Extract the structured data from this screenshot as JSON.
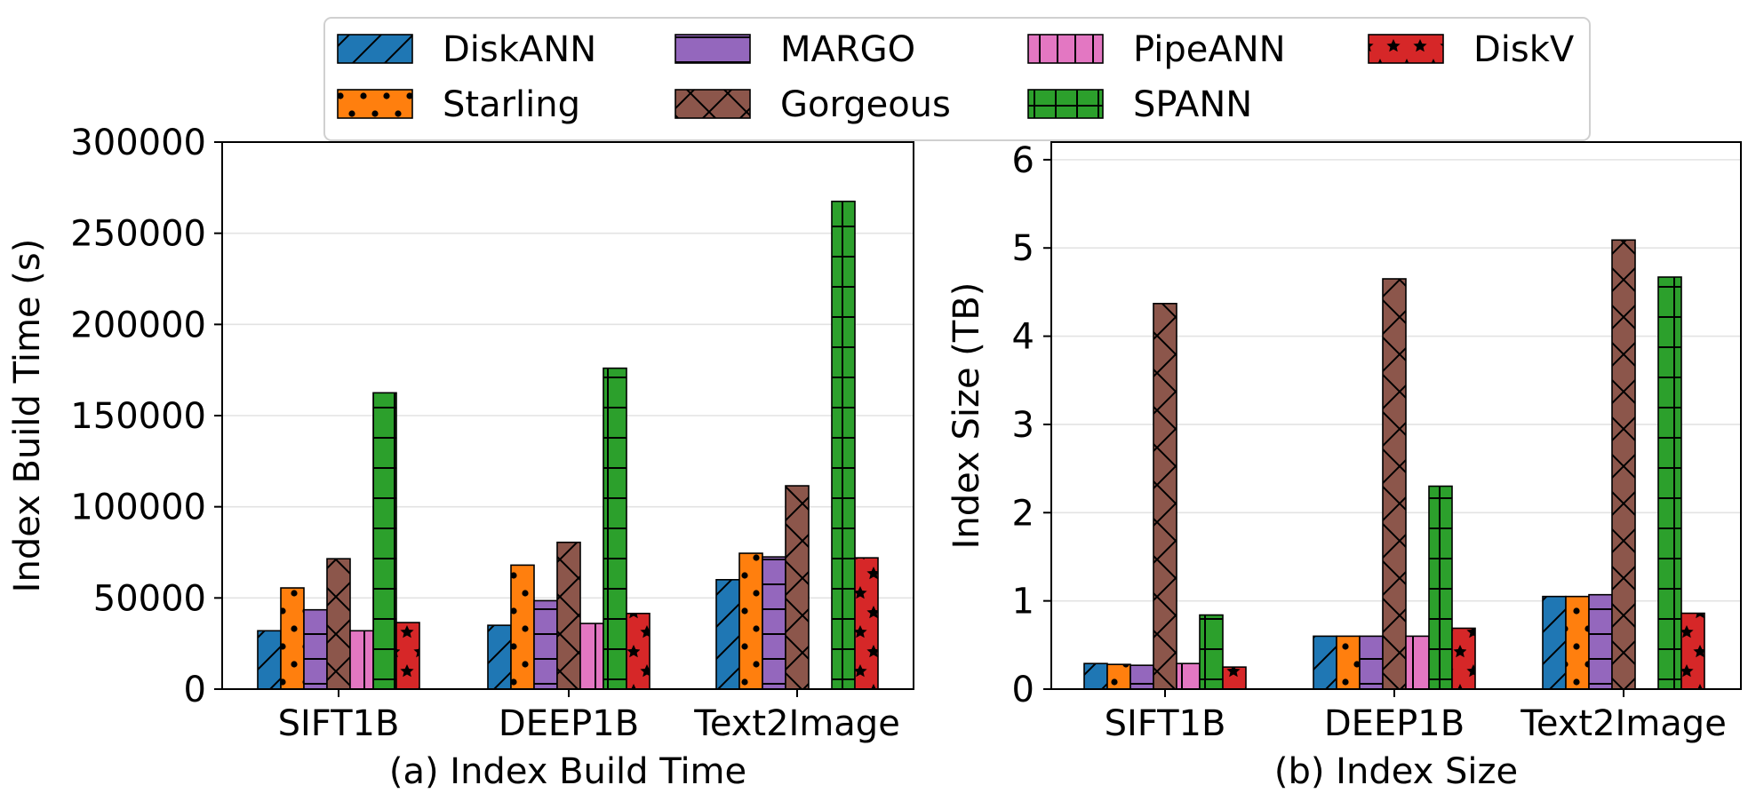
{
  "legend": {
    "placement": "top-center",
    "entries": [
      {
        "name": "DiskANN",
        "color": "#1f77b4",
        "hatch": "diag"
      },
      {
        "name": "Starling",
        "color": "#ff7f0e",
        "hatch": "dots"
      },
      {
        "name": "MARGO",
        "color": "#9467bd",
        "hatch": "hlines"
      },
      {
        "name": "Gorgeous",
        "color": "#8c564b",
        "hatch": "cross"
      },
      {
        "name": "PipeANN",
        "color": "#e377c2",
        "hatch": "vlines"
      },
      {
        "name": "SPANN",
        "color": "#2ca02c",
        "hatch": "grid"
      },
      {
        "name": "DiskV",
        "color": "#d62728",
        "hatch": "stars"
      }
    ]
  },
  "chart_data": [
    {
      "type": "bar",
      "xlabel": "(a) Index Build Time",
      "ylabel": "Index Build Time (s)",
      "categories": [
        "SIFT1B",
        "DEEP1B",
        "Text2Image"
      ],
      "ylim": [
        0,
        300000
      ],
      "yticks": [
        0,
        50000,
        100000,
        150000,
        200000,
        250000,
        300000
      ],
      "ytick_labels": [
        "0",
        "50000",
        "100000",
        "150000",
        "200000",
        "250000",
        "300000"
      ],
      "grid": true,
      "series": [
        {
          "name": "DiskANN",
          "values": [
            32000,
            35000,
            60000
          ]
        },
        {
          "name": "Starling",
          "values": [
            55500,
            68000,
            74500
          ]
        },
        {
          "name": "MARGO",
          "values": [
            43500,
            48500,
            72500
          ]
        },
        {
          "name": "Gorgeous",
          "values": [
            71500,
            80500,
            111500
          ]
        },
        {
          "name": "PipeANN",
          "values": [
            32000,
            36000,
            null
          ]
        },
        {
          "name": "SPANN",
          "values": [
            162500,
            176000,
            267500
          ]
        },
        {
          "name": "DiskV",
          "values": [
            36500,
            41500,
            72000
          ]
        }
      ]
    },
    {
      "type": "bar",
      "xlabel": "(b) Index Size",
      "ylabel": "Index Size (TB)",
      "categories": [
        "SIFT1B",
        "DEEP1B",
        "Text2Image"
      ],
      "ylim": [
        0,
        6.2
      ],
      "yticks": [
        0,
        1,
        2,
        3,
        4,
        5,
        6
      ],
      "ytick_labels": [
        "0",
        "1",
        "2",
        "3",
        "4",
        "5",
        "6"
      ],
      "grid": true,
      "series": [
        {
          "name": "DiskANN",
          "values": [
            0.29,
            0.6,
            1.05
          ]
        },
        {
          "name": "Starling",
          "values": [
            0.28,
            0.6,
            1.05
          ]
        },
        {
          "name": "MARGO",
          "values": [
            0.27,
            0.6,
            1.07
          ]
        },
        {
          "name": "Gorgeous",
          "values": [
            4.37,
            4.65,
            5.09
          ]
        },
        {
          "name": "PipeANN",
          "values": [
            0.29,
            0.6,
            null
          ]
        },
        {
          "name": "SPANN",
          "values": [
            0.84,
            2.3,
            4.67
          ]
        },
        {
          "name": "DiskV",
          "values": [
            0.25,
            0.69,
            0.86
          ]
        }
      ]
    }
  ]
}
